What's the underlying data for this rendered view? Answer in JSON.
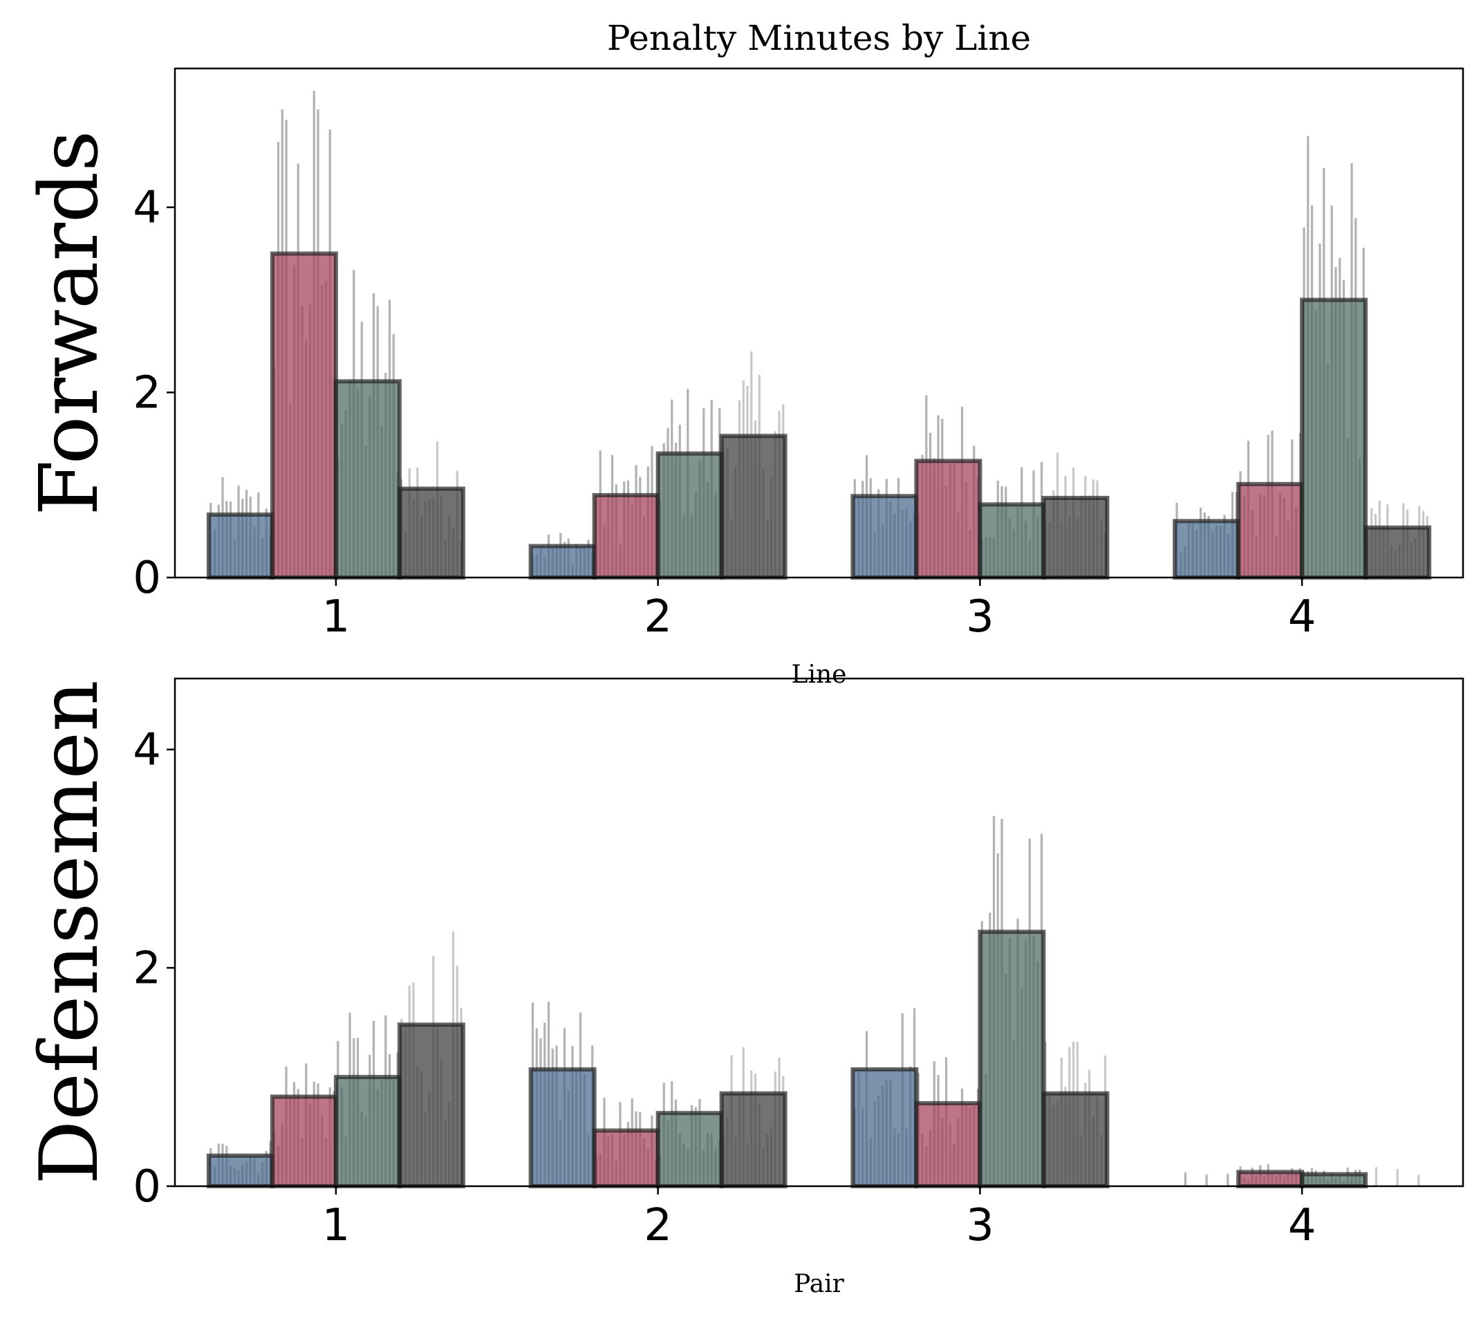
{
  "chart_data": {
    "type": "bar",
    "title": "Penalty Minutes by Line",
    "colors": [
      "#4a6a8f",
      "#a3405a",
      "#4d6b63",
      "#3b3b3b"
    ],
    "edge_color": "#222222",
    "panels": [
      {
        "ylabel": "Forwards",
        "xlabel": "Line",
        "categories": [
          "1",
          "2",
          "3",
          "4"
        ],
        "yticks": [
          "0",
          "2",
          "4"
        ],
        "ylim": [
          0,
          5.5
        ],
        "grid": false,
        "series": [
          {
            "values": [
              0.68,
              0.34,
              0.88,
              0.61
            ]
          },
          {
            "values": [
              3.5,
              0.89,
              1.26,
              1.01
            ]
          },
          {
            "values": [
              2.12,
              1.34,
              0.79,
              3.0
            ]
          },
          {
            "values": [
              0.96,
              1.53,
              0.86,
              0.54
            ]
          }
        ]
      },
      {
        "ylabel": "Defensemen",
        "xlabel": "Pair",
        "categories": [
          "1",
          "2",
          "3",
          "4"
        ],
        "yticks": [
          "0",
          "2",
          "4"
        ],
        "ylim": [
          0,
          4.65
        ],
        "grid": false,
        "series": [
          {
            "values": [
              0.28,
              1.07,
              1.07,
              0.0
            ]
          },
          {
            "values": [
              0.82,
              0.51,
              0.76,
              0.13
            ]
          },
          {
            "values": [
              1.0,
              0.67,
              2.33,
              0.11
            ]
          },
          {
            "values": [
              1.48,
              0.85,
              0.85,
              0.0
            ]
          }
        ]
      }
    ]
  }
}
